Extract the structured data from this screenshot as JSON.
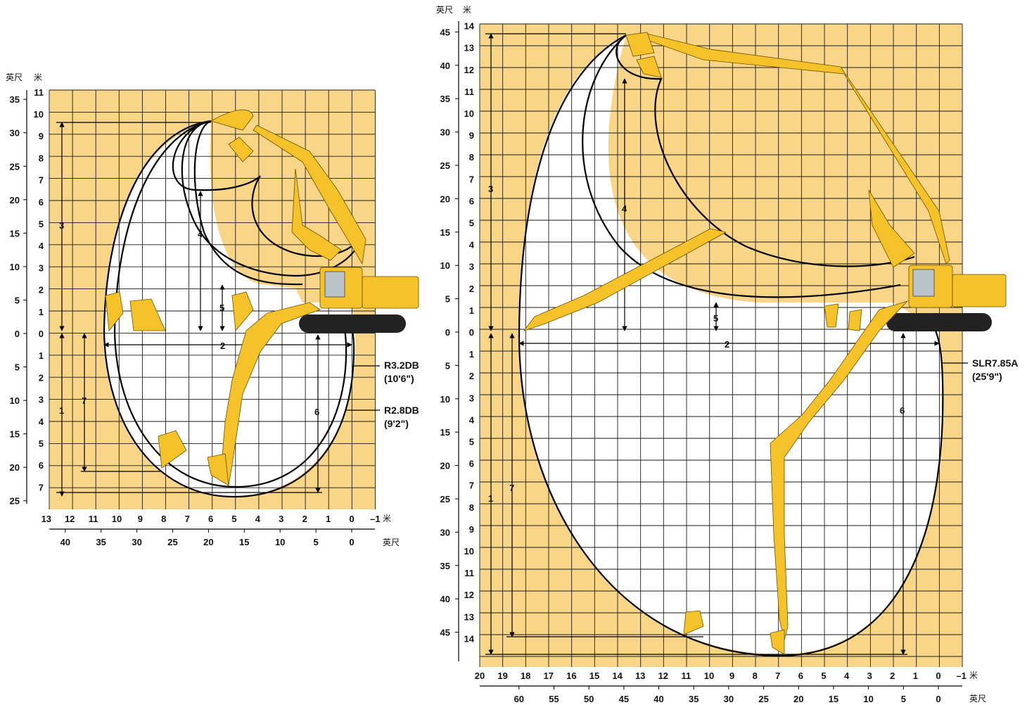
{
  "colors": {
    "background_fill": "#f9d587",
    "reach_fill": "#ffffff",
    "grid": "#1a1a1a",
    "machine": "#f5c22a",
    "envelope": "#000000"
  },
  "icons": [
    "excavator-icon",
    "bucket-icon",
    "arrow-icon"
  ],
  "chart_data": [
    {
      "type": "working-range-diagram",
      "units": {
        "meters": "米",
        "feet": "英尺"
      },
      "y_meters_ticks_above": [
        "11",
        "10",
        "9",
        "8",
        "7",
        "6",
        "5",
        "4",
        "3",
        "2",
        "1",
        "0"
      ],
      "y_meters_ticks_below": [
        "1",
        "2",
        "3",
        "4",
        "5",
        "6",
        "7"
      ],
      "y_feet_ticks": [
        "35",
        "30",
        "25",
        "20",
        "15",
        "10",
        "5",
        "0",
        "5",
        "10",
        "15",
        "20",
        "25"
      ],
      "x_meters_ticks": [
        "13",
        "12",
        "11",
        "10",
        "9",
        "8",
        "7",
        "6",
        "5",
        "4",
        "3",
        "2",
        "1",
        "0",
        "–1"
      ],
      "x_feet_ticks": [
        "40",
        "35",
        "30",
        "25",
        "20",
        "15",
        "10",
        "5",
        "0"
      ],
      "dimension_labels": [
        "1",
        "2",
        "3",
        "4",
        "5",
        "6",
        "7"
      ],
      "configurations": [
        {
          "label": "R3.2DB",
          "sub": "(10'6\")"
        },
        {
          "label": "R2.8DB",
          "sub": "(9'2\")"
        }
      ]
    },
    {
      "type": "working-range-diagram",
      "units": {
        "meters": "米",
        "feet": "英尺"
      },
      "y_meters_ticks_above": [
        "14",
        "13",
        "12",
        "11",
        "10",
        "9",
        "8",
        "7",
        "6",
        "5",
        "4",
        "3",
        "2",
        "1",
        "0"
      ],
      "y_meters_ticks_below": [
        "1",
        "2",
        "3",
        "4",
        "5",
        "6",
        "7",
        "8",
        "9",
        "10",
        "11",
        "12",
        "13",
        "14"
      ],
      "y_feet_ticks": [
        "45",
        "40",
        "35",
        "30",
        "25",
        "20",
        "15",
        "10",
        "5",
        "0",
        "5",
        "10",
        "15",
        "20",
        "25",
        "30",
        "35",
        "40",
        "45"
      ],
      "x_meters_ticks": [
        "20",
        "19",
        "18",
        "17",
        "16",
        "15",
        "14",
        "13",
        "12",
        "11",
        "10",
        "9",
        "8",
        "7",
        "6",
        "5",
        "4",
        "3",
        "2",
        "1",
        "0",
        "–1"
      ],
      "x_feet_ticks": [
        "60",
        "55",
        "50",
        "45",
        "40",
        "35",
        "30",
        "25",
        "20",
        "15",
        "10",
        "5",
        "0"
      ],
      "dimension_labels": [
        "1",
        "2",
        "3",
        "4",
        "5",
        "6",
        "7"
      ],
      "configurations": [
        {
          "label": "SLR7.85A",
          "sub": "(25'9\")"
        }
      ]
    }
  ]
}
